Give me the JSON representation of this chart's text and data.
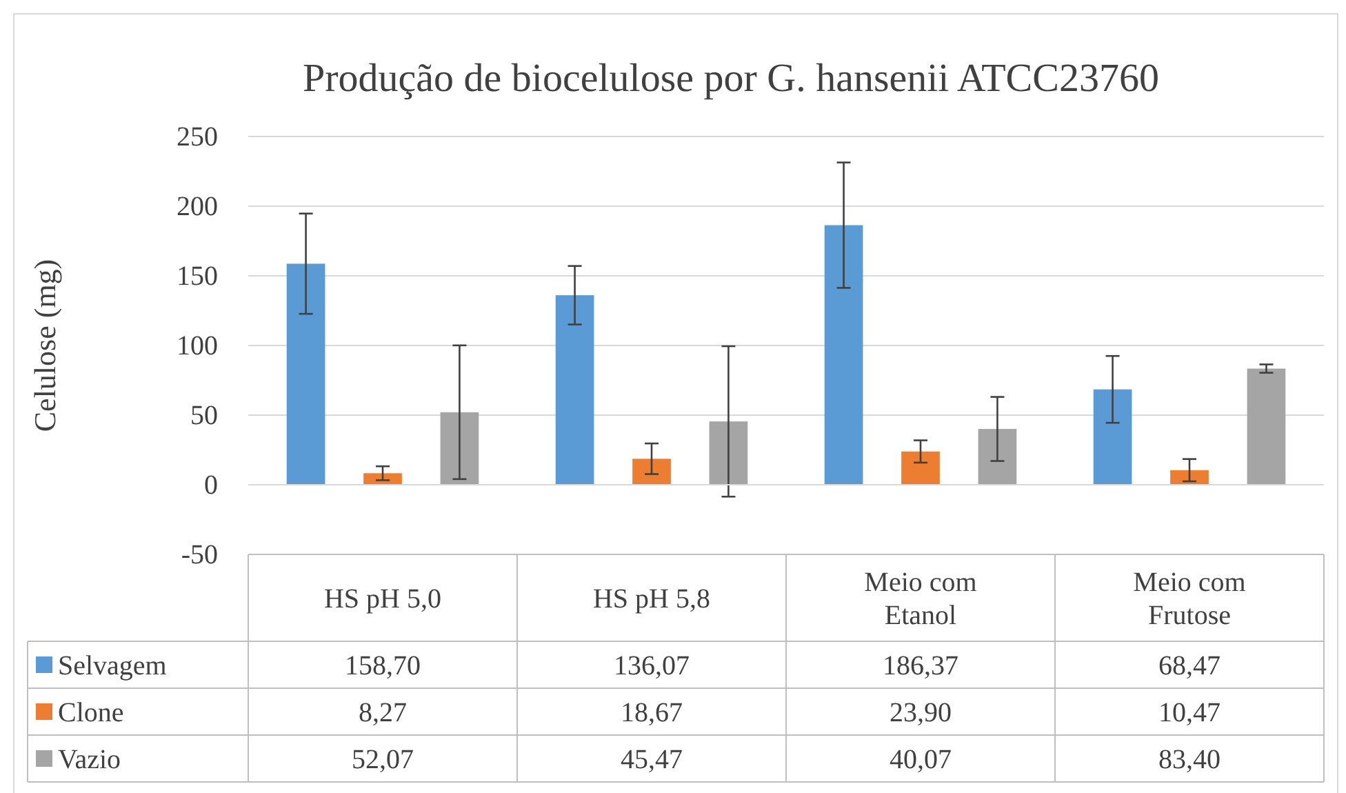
{
  "chart_data": {
    "type": "bar",
    "title": "Produção de biocelulose por G. hansenii ATCC23760",
    "ylabel": "Celulose (mg)",
    "categories": [
      "HS pH 5,0",
      "HS pH 5,8",
      "Meio com Etanol",
      "Meio com Frutose"
    ],
    "series": [
      {
        "name": "Selvagem",
        "color": "#5b9bd5",
        "values": [
          158.7,
          136.07,
          186.37,
          68.47
        ],
        "errors": [
          36,
          21,
          45,
          24
        ],
        "value_labels": [
          "158,70",
          "136,07",
          "186,37",
          "68,47"
        ]
      },
      {
        "name": "Clone",
        "color": "#ed7d31",
        "values": [
          8.27,
          18.67,
          23.9,
          10.47
        ],
        "errors": [
          5,
          11,
          8,
          8
        ],
        "value_labels": [
          "8,27",
          "18,67",
          "23,90",
          "10,47"
        ]
      },
      {
        "name": "Vazio",
        "color": "#a5a5a5",
        "values": [
          52.07,
          45.47,
          40.07,
          83.4
        ],
        "errors": [
          48,
          54,
          23,
          3
        ],
        "value_labels": [
          "52,07",
          "45,47",
          "40,07",
          "83,40"
        ]
      }
    ],
    "ylim": [
      -50,
      250
    ],
    "yticks": [
      -50,
      0,
      50,
      100,
      150,
      200,
      250
    ],
    "grid": "y",
    "legend": "bottom"
  }
}
